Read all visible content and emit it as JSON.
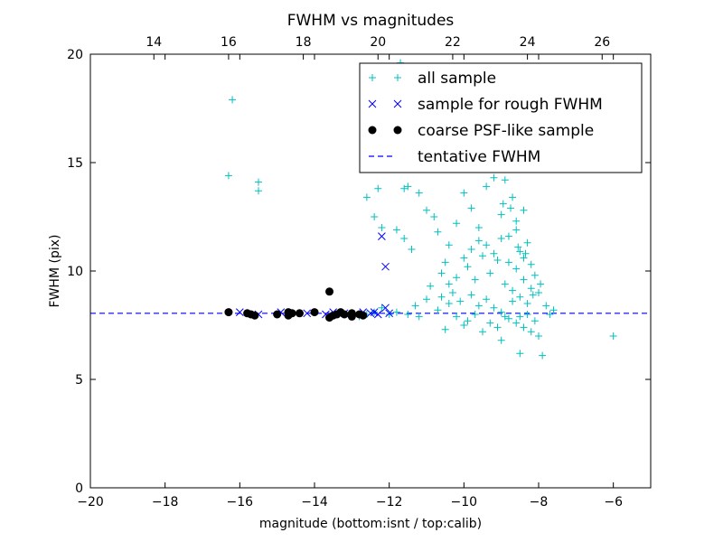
{
  "chart_data": {
    "type": "scatter",
    "title": "FWHM vs magnitudes",
    "xlabel": "magnitude (bottom:isnt / top:calib)",
    "ylabel": "FWHM (pix)",
    "xlim": [
      -20,
      -5
    ],
    "ylim": [
      0,
      20
    ],
    "x_ticks": [
      "−20",
      "−18",
      "−16",
      "−14",
      "−12",
      "−10",
      "−8",
      "−6"
    ],
    "y_ticks": [
      "0",
      "5",
      "10",
      "15",
      "20"
    ],
    "top_axis": {
      "offset": 32.3,
      "ticks": [
        "14",
        "16",
        "18",
        "20",
        "22",
        "24",
        "26"
      ]
    },
    "grid": false,
    "legend_position": "top-right",
    "tentative_fwhm": 8.05,
    "series": [
      {
        "name": "all sample",
        "marker": "plus",
        "color": "#00bfbf",
        "points": [
          [
            -16.2,
            17.9
          ],
          [
            -16.3,
            14.4
          ],
          [
            -15.5,
            14.1
          ],
          [
            -15.5,
            13.7
          ],
          [
            -12.6,
            13.4
          ],
          [
            -12.4,
            12.5
          ],
          [
            -12.2,
            12.0
          ],
          [
            -12.3,
            13.8
          ],
          [
            -11.8,
            11.9
          ],
          [
            -11.6,
            11.5
          ],
          [
            -11.6,
            13.8
          ],
          [
            -11.4,
            11.0
          ],
          [
            -11.5,
            13.9
          ],
          [
            -11.2,
            13.6
          ],
          [
            -11.0,
            12.8
          ],
          [
            -10.8,
            12.5
          ],
          [
            -10.7,
            11.8
          ],
          [
            -10.5,
            10.4
          ],
          [
            -10.4,
            11.2
          ],
          [
            -10.2,
            12.2
          ],
          [
            -10.0,
            13.6
          ],
          [
            -9.8,
            12.9
          ],
          [
            -9.6,
            11.4
          ],
          [
            -9.4,
            13.9
          ],
          [
            -9.2,
            14.3
          ],
          [
            -9.0,
            12.6
          ],
          [
            -8.9,
            14.2
          ],
          [
            -8.8,
            11.6
          ],
          [
            -8.7,
            13.4
          ],
          [
            -8.6,
            12.3
          ],
          [
            -8.5,
            10.9
          ],
          [
            -8.4,
            12.8
          ],
          [
            -8.3,
            11.3
          ],
          [
            -8.2,
            10.3
          ],
          [
            -8.1,
            9.8
          ],
          [
            -8.0,
            9.0
          ],
          [
            -9.9,
            10.2
          ],
          [
            -9.7,
            9.6
          ],
          [
            -9.5,
            10.7
          ],
          [
            -9.3,
            9.9
          ],
          [
            -9.1,
            10.5
          ],
          [
            -8.9,
            9.4
          ],
          [
            -8.7,
            9.1
          ],
          [
            -8.6,
            10.1
          ],
          [
            -8.5,
            8.8
          ],
          [
            -8.4,
            9.6
          ],
          [
            -8.3,
            8.5
          ],
          [
            -8.2,
            9.2
          ],
          [
            -10.9,
            9.3
          ],
          [
            -10.6,
            8.8
          ],
          [
            -10.3,
            9.0
          ],
          [
            -10.1,
            8.6
          ],
          [
            -9.8,
            8.9
          ],
          [
            -9.6,
            8.4
          ],
          [
            -9.4,
            8.7
          ],
          [
            -9.2,
            8.3
          ],
          [
            -9.0,
            8.1
          ],
          [
            -8.8,
            7.8
          ],
          [
            -8.6,
            7.6
          ],
          [
            -8.4,
            7.4
          ],
          [
            -8.2,
            7.2
          ],
          [
            -8.0,
            7.0
          ],
          [
            -7.9,
            6.1
          ],
          [
            -8.5,
            6.2
          ],
          [
            -9.0,
            6.8
          ],
          [
            -9.5,
            7.2
          ],
          [
            -10.0,
            7.5
          ],
          [
            -10.5,
            7.3
          ],
          [
            -11.2,
            7.9
          ],
          [
            -11.5,
            8.0
          ],
          [
            -11.8,
            8.1
          ],
          [
            -12.0,
            8.0
          ],
          [
            -7.6,
            8.2
          ],
          [
            -7.8,
            8.4
          ],
          [
            -7.7,
            8.0
          ],
          [
            -6.0,
            7.0
          ],
          [
            -11.3,
            8.4
          ],
          [
            -11.0,
            8.7
          ],
          [
            -10.7,
            8.2
          ],
          [
            -10.4,
            8.5
          ],
          [
            -10.2,
            7.9
          ],
          [
            -9.9,
            7.7
          ],
          [
            -9.7,
            8.0
          ],
          [
            -9.3,
            7.6
          ],
          [
            -9.1,
            7.4
          ],
          [
            -8.9,
            7.9
          ],
          [
            -8.7,
            8.6
          ],
          [
            -8.5,
            7.9
          ],
          [
            -8.3,
            8.0
          ],
          [
            -8.1,
            7.7
          ],
          [
            -9.6,
            12.0
          ],
          [
            -9.4,
            11.2
          ],
          [
            -9.2,
            10.8
          ],
          [
            -9.0,
            11.5
          ],
          [
            -8.8,
            10.4
          ],
          [
            -8.6,
            11.9
          ],
          [
            -8.4,
            10.6
          ],
          [
            -9.8,
            11.0
          ],
          [
            -10.0,
            10.6
          ],
          [
            -10.2,
            9.7
          ],
          [
            -10.4,
            9.4
          ],
          [
            -10.6,
            9.9
          ],
          [
            -11.7,
            19.6
          ],
          [
            -12.2,
            8.3
          ],
          [
            -12.4,
            8.1
          ],
          [
            -12.6,
            8.0
          ],
          [
            -12.8,
            7.9
          ],
          [
            -13.0,
            8.0
          ],
          [
            -8.95,
            13.1
          ],
          [
            -8.75,
            12.9
          ],
          [
            -8.55,
            11.1
          ],
          [
            -8.35,
            10.8
          ],
          [
            -8.15,
            8.9
          ],
          [
            -7.95,
            9.4
          ]
        ]
      },
      {
        "name": "sample for rough FWHM",
        "marker": "x",
        "color": "#0000ff",
        "points": [
          [
            -12.2,
            11.6
          ],
          [
            -12.1,
            10.2
          ],
          [
            -12.1,
            8.3
          ],
          [
            -12.3,
            8.0
          ],
          [
            -12.5,
            8.05
          ],
          [
            -12.7,
            8.1
          ],
          [
            -12.9,
            8.0
          ],
          [
            -13.2,
            8.05
          ],
          [
            -13.5,
            8.1
          ],
          [
            -13.7,
            8.0
          ],
          [
            -14.2,
            8.05
          ],
          [
            -14.9,
            8.1
          ],
          [
            -15.5,
            8.0
          ],
          [
            -16.0,
            8.1
          ],
          [
            -12.0,
            8.05
          ],
          [
            -12.4,
            8.1
          ]
        ]
      },
      {
        "name": "coarse PSF-like sample",
        "marker": "circle",
        "color": "#000000",
        "points": [
          [
            -16.3,
            8.1
          ],
          [
            -15.8,
            8.05
          ],
          [
            -15.7,
            8.0
          ],
          [
            -15.6,
            7.95
          ],
          [
            -15.0,
            8.0
          ],
          [
            -14.7,
            8.1
          ],
          [
            -14.6,
            8.05
          ],
          [
            -14.7,
            7.95
          ],
          [
            -14.4,
            8.05
          ],
          [
            -14.0,
            8.1
          ],
          [
            -13.6,
            9.05
          ],
          [
            -13.6,
            7.85
          ],
          [
            -13.5,
            7.95
          ],
          [
            -13.3,
            8.1
          ],
          [
            -13.2,
            8.0
          ],
          [
            -13.0,
            8.05
          ],
          [
            -13.0,
            7.9
          ],
          [
            -12.8,
            8.0
          ],
          [
            -12.7,
            7.95
          ],
          [
            -13.4,
            8.0
          ]
        ]
      },
      {
        "name": "tentative FWHM",
        "marker": "dashed-line",
        "color": "#0000ff",
        "y": 8.05
      }
    ]
  }
}
